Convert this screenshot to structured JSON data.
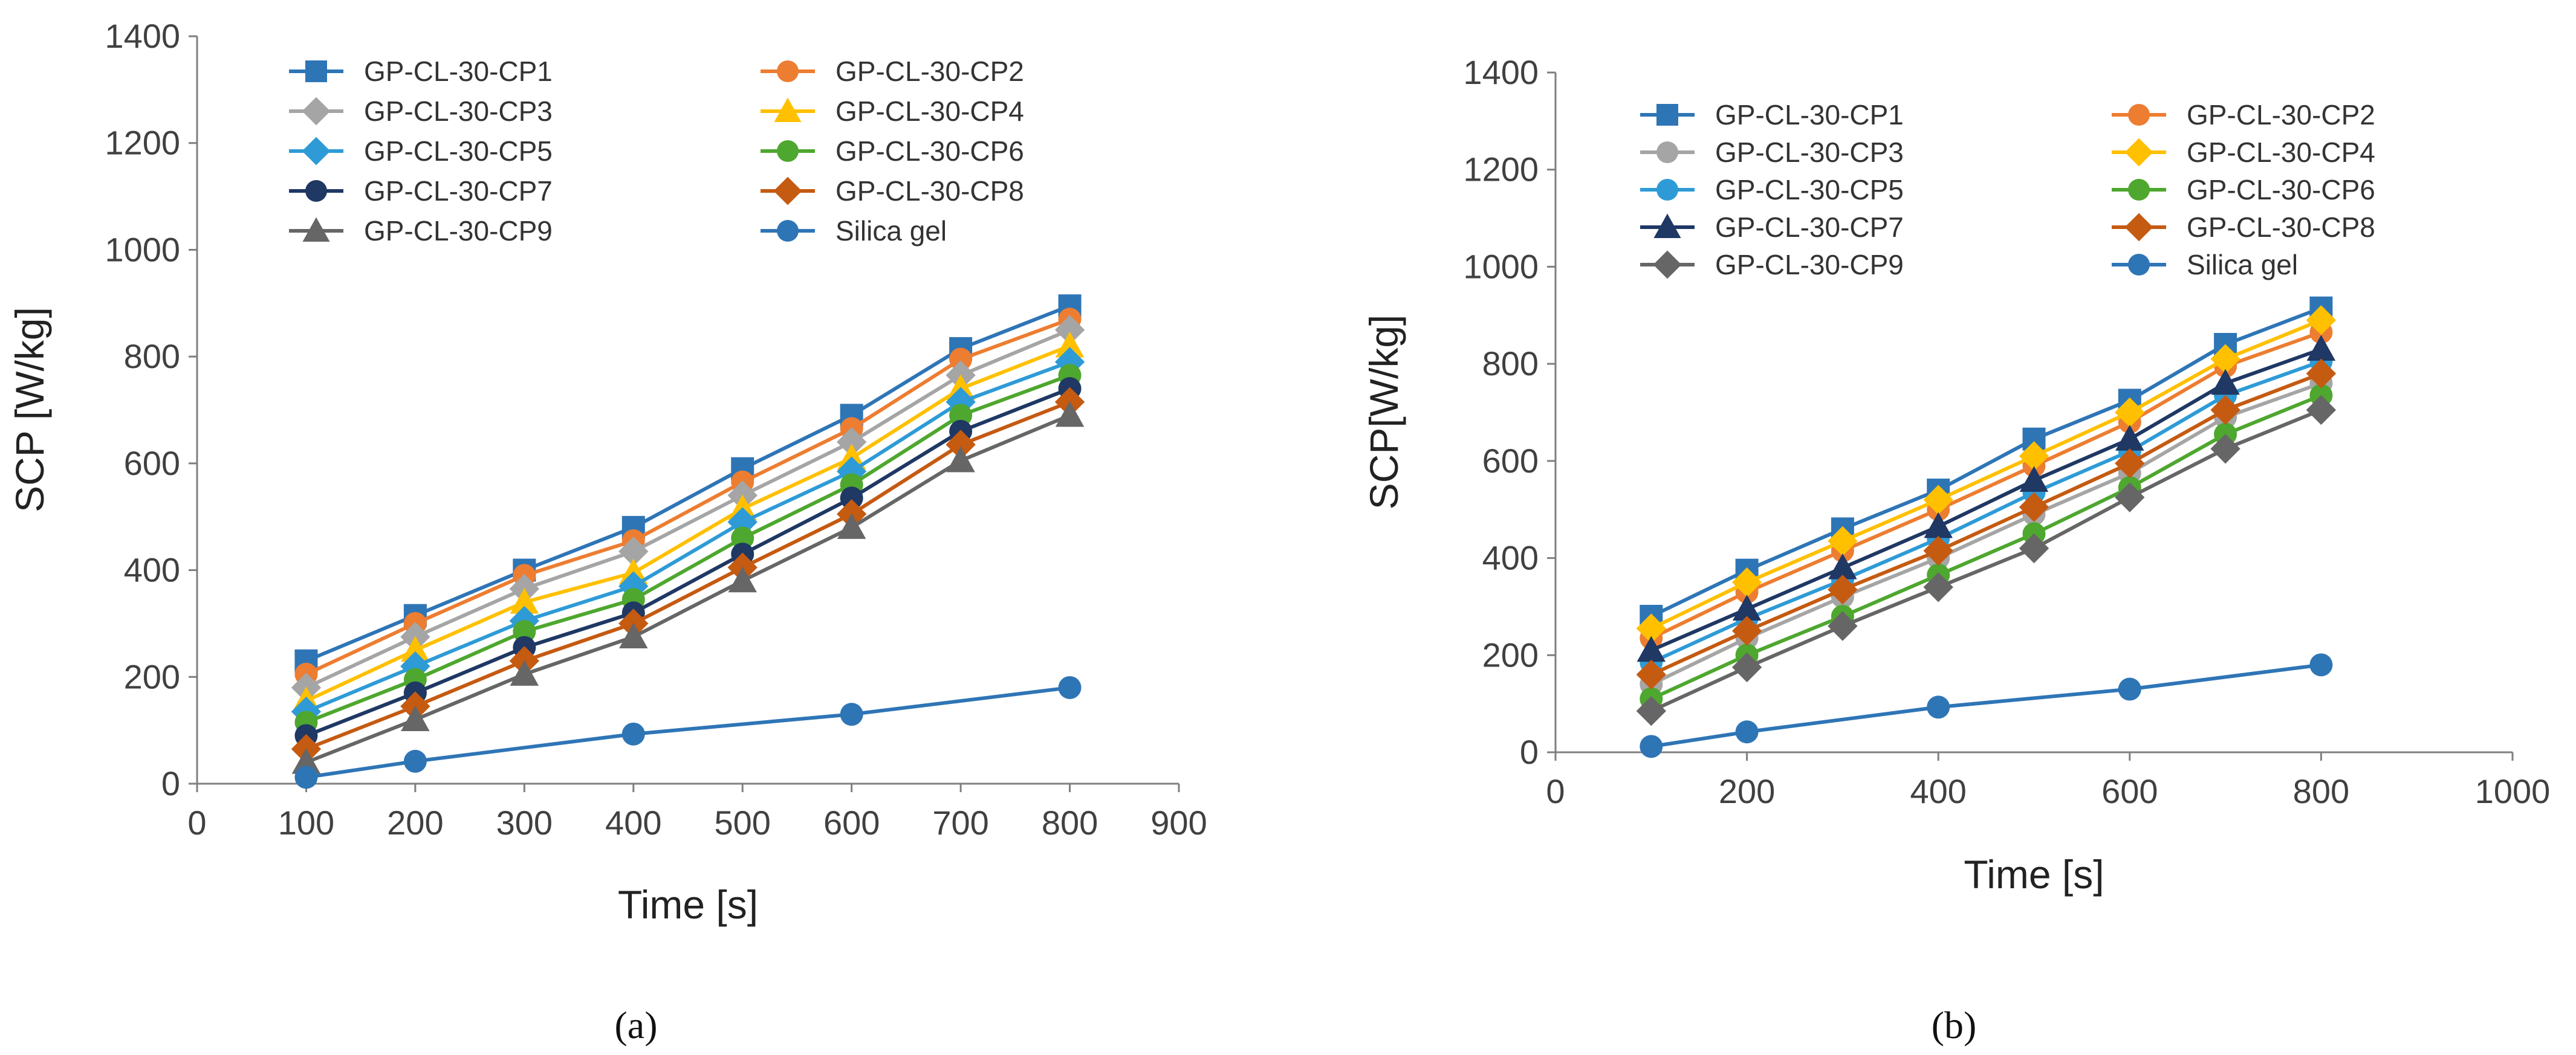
{
  "chart_data": [
    {
      "type": "line",
      "panel_label": "(a)",
      "xlabel": "Time [s]",
      "ylabel": "SCP [W/kg]",
      "xlim": [
        0,
        900
      ],
      "ylim": [
        0,
        1400
      ],
      "xticks": [
        0,
        100,
        200,
        300,
        400,
        500,
        600,
        700,
        800,
        900
      ],
      "yticks": [
        0,
        200,
        400,
        600,
        800,
        1000,
        1200,
        1400
      ],
      "grid": false,
      "legend": "top-left, 2 columns",
      "x": [
        100,
        200,
        300,
        400,
        500,
        600,
        700,
        800
      ],
      "series": [
        {
          "name": "GP-CL-30-CP1",
          "color": "#2E75B6",
          "marker": "square",
          "values": [
            230,
            315,
            400,
            480,
            590,
            690,
            815,
            895
          ]
        },
        {
          "name": "GP-CL-30-CP2",
          "color": "#ED7D31",
          "marker": "circle",
          "values": [
            205,
            300,
            390,
            455,
            565,
            665,
            795,
            870
          ]
        },
        {
          "name": "GP-CL-30-CP3",
          "color": "#A5A5A5",
          "marker": "diamond",
          "values": [
            180,
            275,
            365,
            435,
            540,
            640,
            765,
            850
          ]
        },
        {
          "name": "GP-CL-30-CP4",
          "color": "#FFC000",
          "marker": "triangle",
          "values": [
            155,
            250,
            340,
            395,
            515,
            610,
            740,
            820
          ]
        },
        {
          "name": "GP-CL-30-CP5",
          "color": "#2E9BD6",
          "marker": "diamond",
          "values": [
            135,
            220,
            305,
            370,
            490,
            585,
            715,
            790
          ]
        },
        {
          "name": "GP-CL-30-CP6",
          "color": "#4EA72E",
          "marker": "circle",
          "values": [
            115,
            195,
            285,
            345,
            460,
            560,
            690,
            765
          ]
        },
        {
          "name": "GP-CL-30-CP7",
          "color": "#1F3864",
          "marker": "circle",
          "values": [
            90,
            170,
            255,
            320,
            430,
            535,
            660,
            740
          ]
        },
        {
          "name": "GP-CL-30-CP8",
          "color": "#C55A11",
          "marker": "diamond",
          "values": [
            65,
            145,
            230,
            300,
            405,
            505,
            635,
            715
          ]
        },
        {
          "name": "GP-CL-30-CP9",
          "color": "#666666",
          "marker": "triangle",
          "values": [
            40,
            120,
            205,
            275,
            380,
            480,
            605,
            690
          ]
        },
        {
          "name": "Silica gel",
          "color": "#2E75B6",
          "marker": "circle",
          "x": [
            100,
            200,
            400,
            600,
            800
          ],
          "values": [
            12,
            42,
            93,
            130,
            180
          ]
        }
      ]
    },
    {
      "type": "line",
      "panel_label": "(b)",
      "xlabel": "Time [s]",
      "ylabel": "SCP[W/kg]",
      "xlim": [
        0,
        1000
      ],
      "ylim": [
        0,
        1400
      ],
      "xticks": [
        0,
        200,
        400,
        600,
        800,
        1000
      ],
      "yticks": [
        0,
        200,
        400,
        600,
        800,
        1000,
        1200,
        1400
      ],
      "grid": false,
      "legend": "top-left, 2 columns",
      "x": [
        100,
        200,
        300,
        400,
        500,
        600,
        700,
        800
      ],
      "series": [
        {
          "name": "GP-CL-30-CP1",
          "color": "#2E75B6",
          "marker": "square",
          "values": [
            280,
            375,
            460,
            540,
            645,
            725,
            840,
            915
          ]
        },
        {
          "name": "GP-CL-30-CP2",
          "color": "#ED7D31",
          "marker": "circle",
          "values": [
            235,
            330,
            415,
            500,
            590,
            680,
            795,
            865
          ]
        },
        {
          "name": "GP-CL-30-CP3",
          "color": "#A5A5A5",
          "marker": "circle",
          "values": [
            140,
            235,
            320,
            400,
            490,
            575,
            690,
            760
          ]
        },
        {
          "name": "GP-CL-30-CP4",
          "color": "#FFC000",
          "marker": "diamond",
          "values": [
            255,
            350,
            435,
            520,
            610,
            700,
            810,
            890
          ]
        },
        {
          "name": "GP-CL-30-CP5",
          "color": "#2E9BD6",
          "marker": "circle",
          "values": [
            185,
            275,
            355,
            440,
            535,
            620,
            735,
            805
          ]
        },
        {
          "name": "GP-CL-30-CP6",
          "color": "#4EA72E",
          "marker": "circle",
          "values": [
            110,
            200,
            280,
            365,
            450,
            545,
            655,
            735
          ]
        },
        {
          "name": "GP-CL-30-CP7",
          "color": "#1F3864",
          "marker": "triangle",
          "values": [
            210,
            295,
            380,
            465,
            560,
            645,
            760,
            830
          ]
        },
        {
          "name": "GP-CL-30-CP8",
          "color": "#C55A11",
          "marker": "diamond",
          "values": [
            160,
            250,
            335,
            415,
            505,
            595,
            705,
            780
          ]
        },
        {
          "name": "GP-CL-30-CP9",
          "color": "#666666",
          "marker": "diamond",
          "values": [
            85,
            175,
            260,
            340,
            420,
            525,
            625,
            705
          ]
        },
        {
          "name": "Silica gel",
          "color": "#2E75B6",
          "marker": "circle",
          "x": [
            100,
            200,
            400,
            600,
            800
          ],
          "values": [
            12,
            42,
            93,
            130,
            180
          ]
        }
      ]
    }
  ]
}
